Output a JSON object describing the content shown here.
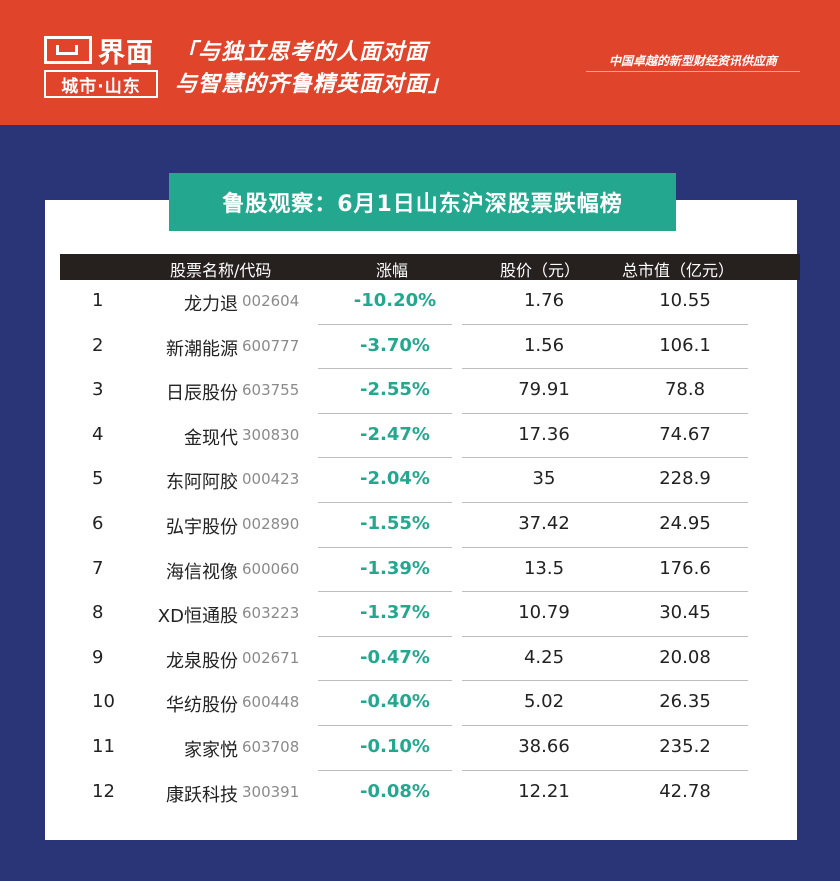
{
  "header": {
    "logo_text": "界面",
    "logo_sub": "城市·山东",
    "slogan_line1": "「与独立思考的人面对面",
    "slogan_line2": "与智慧的齐鲁精英面对面」",
    "tagline": "中国卓越的新型财经资讯供应商",
    "colors": {
      "header_bg": "#e0452b",
      "page_bg": "#2a3577",
      "accent": "#23a88f"
    }
  },
  "title": "鲁股观察：6月1日山东沪深股票跌幅榜",
  "table": {
    "headers": [
      "股票名称/代码",
      "涨幅",
      "股价（元）",
      "总市值（亿元）"
    ],
    "rows": [
      {
        "idx": "1",
        "name": "龙力退",
        "code": "002604",
        "change": "-10.20%",
        "price": "1.76",
        "cap": "10.55"
      },
      {
        "idx": "2",
        "name": "新潮能源",
        "code": "600777",
        "change": "-3.70%",
        "price": "1.56",
        "cap": "106.1"
      },
      {
        "idx": "3",
        "name": "日辰股份",
        "code": "603755",
        "change": "-2.55%",
        "price": "79.91",
        "cap": "78.8"
      },
      {
        "idx": "4",
        "name": "金现代",
        "code": "300830",
        "change": "-2.47%",
        "price": "17.36",
        "cap": "74.67"
      },
      {
        "idx": "5",
        "name": "东阿阿胶",
        "code": "000423",
        "change": "-2.04%",
        "price": "35",
        "cap": "228.9"
      },
      {
        "idx": "6",
        "name": "弘宇股份",
        "code": "002890",
        "change": "-1.55%",
        "price": "37.42",
        "cap": "24.95"
      },
      {
        "idx": "7",
        "name": "海信视像",
        "code": "600060",
        "change": "-1.39%",
        "price": "13.5",
        "cap": "176.6"
      },
      {
        "idx": "8",
        "name": "XD恒通股",
        "code": "603223",
        "change": "-1.37%",
        "price": "10.79",
        "cap": "30.45"
      },
      {
        "idx": "9",
        "name": "龙泉股份",
        "code": "002671",
        "change": "-0.47%",
        "price": "4.25",
        "cap": "20.08"
      },
      {
        "idx": "10",
        "name": "华纺股份",
        "code": "600448",
        "change": "-0.40%",
        "price": "5.02",
        "cap": "26.35"
      },
      {
        "idx": "11",
        "name": "家家悦",
        "code": "603708",
        "change": "-0.10%",
        "price": "38.66",
        "cap": "235.2"
      },
      {
        "idx": "12",
        "name": "康跃科技",
        "code": "300391",
        "change": "-0.08%",
        "price": "12.21",
        "cap": "42.78"
      }
    ]
  }
}
